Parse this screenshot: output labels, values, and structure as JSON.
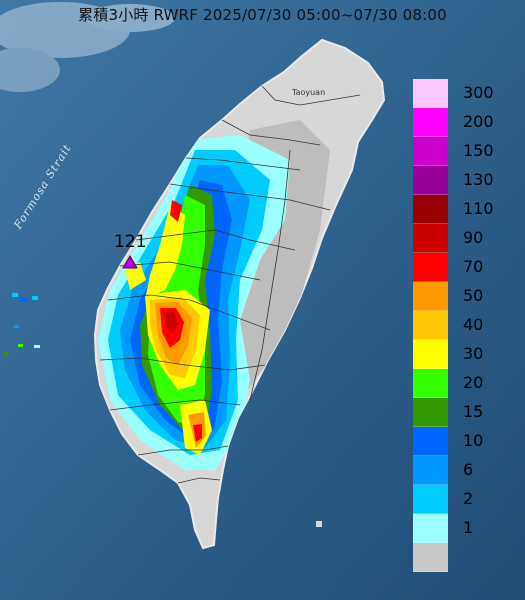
{
  "title": "累積3小時 RWRF 2025/07/30 05:00~07/30 08:00",
  "strait_label": "Formosa Strait",
  "city_label": "Taoyuan",
  "station_marker": {
    "value": "121",
    "color": "#b300e6"
  },
  "legend": [
    {
      "label": "300",
      "color": "#ffc6ff"
    },
    {
      "label": "200",
      "color": "#ff00ff"
    },
    {
      "label": "150",
      "color": "#cc00cc"
    },
    {
      "label": "130",
      "color": "#990099"
    },
    {
      "label": "110",
      "color": "#990000"
    },
    {
      "label": "90",
      "color": "#cc0000"
    },
    {
      "label": "70",
      "color": "#ff0000"
    },
    {
      "label": "50",
      "color": "#ff9900"
    },
    {
      "label": "40",
      "color": "#ffc800"
    },
    {
      "label": "30",
      "color": "#ffff00"
    },
    {
      "label": "20",
      "color": "#33ff00"
    },
    {
      "label": "15",
      "color": "#339900"
    },
    {
      "label": "10",
      "color": "#0066ff"
    },
    {
      "label": "6",
      "color": "#0099ff"
    },
    {
      "label": "2",
      "color": "#00ccff"
    },
    {
      "label": "1",
      "color": "#99ffff"
    },
    {
      "label": "",
      "color": "#c8c8c8"
    }
  ]
}
